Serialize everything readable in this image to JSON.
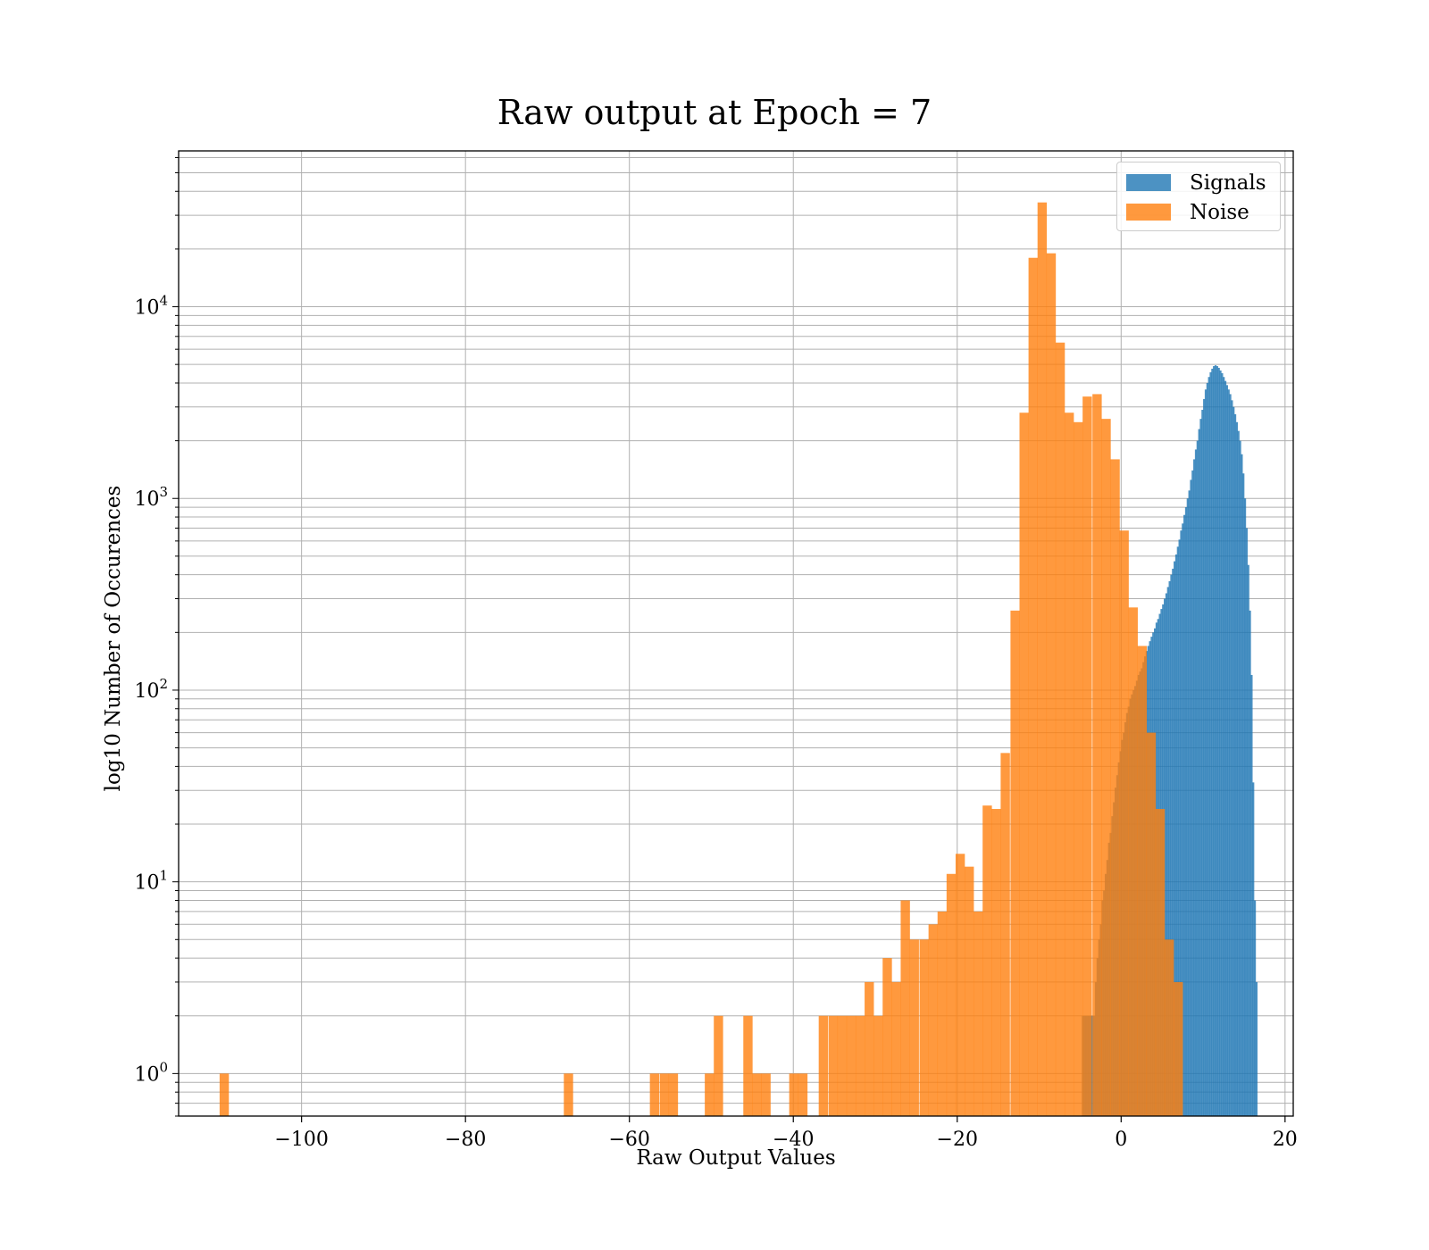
{
  "chart_data": {
    "type": "bar",
    "title": "Raw output at Epoch = 7",
    "xlabel": "Raw Output Values",
    "ylabel": "log10 Number of Occurences",
    "xlim": [
      -115,
      21
    ],
    "ylim": [
      0.6,
      65000
    ],
    "yscale": "log",
    "grid": true,
    "legend_position": "top-right",
    "xticks": [
      -100,
      -80,
      -60,
      -40,
      -20,
      0,
      20
    ],
    "xtick_labels": [
      "−100",
      "−80",
      "−60",
      "−40",
      "−20",
      "0",
      "20"
    ],
    "yticks": [
      1,
      10,
      100,
      1000,
      10000
    ],
    "ytick_labels": [
      {
        "base": "10",
        "exp": "0"
      },
      {
        "base": "10",
        "exp": "1"
      },
      {
        "base": "10",
        "exp": "2"
      },
      {
        "base": "10",
        "exp": "3"
      },
      {
        "base": "10",
        "exp": "4"
      }
    ],
    "series": [
      {
        "name": "Signals",
        "color": "#1f77b4",
        "opacity": 0.8,
        "x_start": -4.8,
        "bin_width": 0.2,
        "values": [
          2,
          2,
          2,
          2,
          2,
          2,
          2,
          2,
          3,
          4,
          5,
          6,
          8,
          9,
          11,
          13,
          16,
          18,
          22,
          26,
          31,
          36,
          42,
          48,
          55,
          60,
          68,
          76,
          82,
          90,
          95,
          100,
          105,
          112,
          120,
          125,
          130,
          140,
          150,
          160,
          170,
          180,
          190,
          200,
          210,
          225,
          235,
          250,
          265,
          280,
          300,
          320,
          345,
          370,
          400,
          430,
          470,
          510,
          560,
          610,
          680,
          740,
          820,
          900,
          1000,
          1100,
          1250,
          1400,
          1600,
          1800,
          2000,
          2300,
          2600,
          2900,
          3300,
          3700,
          4000,
          4300,
          4550,
          4750,
          4900,
          4950,
          4900,
          4800,
          4650,
          4500,
          4300,
          4100,
          3900,
          3700,
          3500,
          3250,
          3000,
          2750,
          2500,
          2250,
          2000,
          1700,
          1350,
          1000,
          700,
          450,
          260,
          120,
          33,
          8,
          3
        ]
      },
      {
        "name": "Noise",
        "color": "#ff7f0e",
        "opacity": 0.8,
        "bins": [
          [
            -110.0,
            1
          ],
          [
            -68.0,
            1
          ],
          [
            -57.5,
            1
          ],
          [
            -56.3,
            1
          ],
          [
            -55.2,
            1
          ],
          [
            -50.8,
            1
          ],
          [
            -49.7,
            2
          ],
          [
            -46.1,
            2
          ],
          [
            -45.0,
            1
          ],
          [
            -43.9,
            1
          ],
          [
            -40.5,
            1
          ],
          [
            -39.4,
            1
          ],
          [
            -36.9,
            2
          ],
          [
            -35.7,
            2
          ],
          [
            -34.6,
            2
          ],
          [
            -33.5,
            2
          ],
          [
            -32.4,
            2
          ],
          [
            -31.3,
            3
          ],
          [
            -30.2,
            2
          ],
          [
            -29.1,
            4
          ],
          [
            -28.0,
            3
          ],
          [
            -26.9,
            8
          ],
          [
            -25.8,
            5
          ],
          [
            -24.6,
            5
          ],
          [
            -23.5,
            6
          ],
          [
            -22.4,
            7
          ],
          [
            -21.3,
            11
          ],
          [
            -20.2,
            14
          ],
          [
            -19.1,
            12
          ],
          [
            -18.0,
            7
          ],
          [
            -16.9,
            25
          ],
          [
            -15.8,
            24
          ],
          [
            -14.7,
            47
          ],
          [
            -13.5,
            260
          ],
          [
            -12.4,
            2800
          ],
          [
            -11.3,
            18000
          ],
          [
            -10.2,
            35000
          ],
          [
            -9.1,
            19000
          ],
          [
            -8.0,
            6500
          ],
          [
            -6.9,
            2800
          ],
          [
            -5.8,
            2500
          ],
          [
            -4.7,
            3400
          ],
          [
            -3.5,
            3500
          ],
          [
            -2.4,
            2600
          ],
          [
            -1.3,
            1600
          ],
          [
            -0.2,
            680
          ],
          [
            0.9,
            270
          ],
          [
            2.0,
            170
          ],
          [
            3.1,
            60
          ],
          [
            4.2,
            24
          ],
          [
            5.3,
            5
          ],
          [
            6.4,
            3
          ]
        ],
        "bin_width": 1.1
      }
    ]
  }
}
